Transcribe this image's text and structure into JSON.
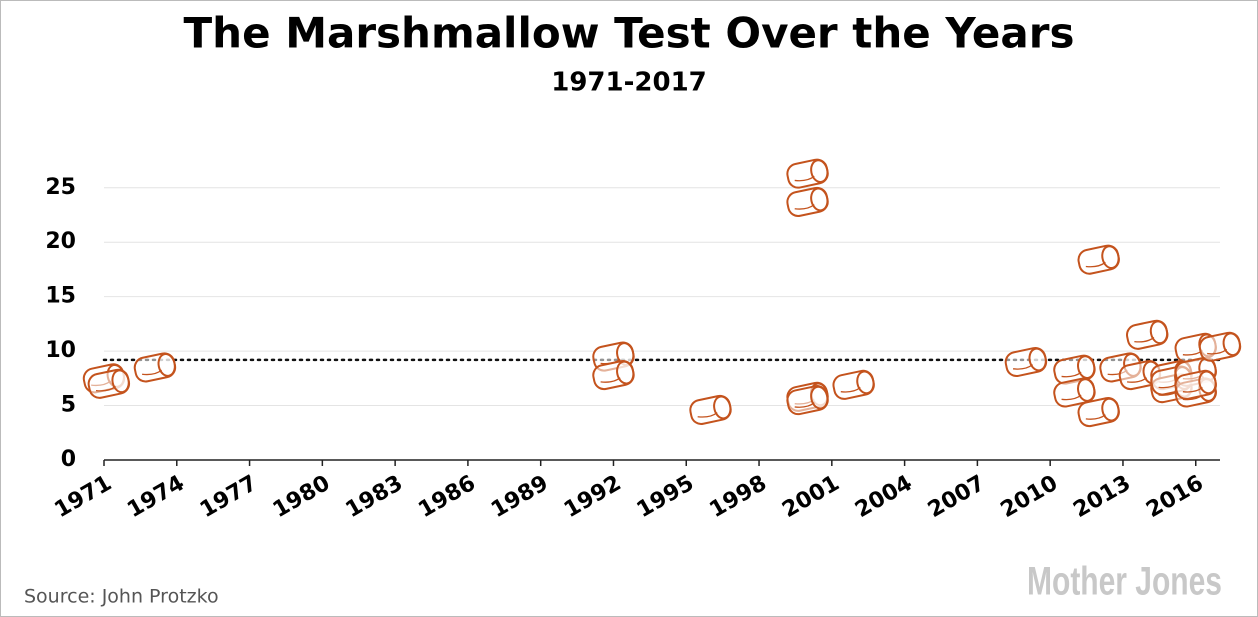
{
  "chart_data": {
    "type": "scatter",
    "title": "The Marshmallow Test Over the Years",
    "subtitle": "1971-2017",
    "series": [
      {
        "color": "#c4531d",
        "x": [
          1971,
          1971.2,
          1973.1,
          1992,
          1992,
          1996,
          2000,
          2000,
          2000,
          2000,
          2001.9,
          2009,
          2011,
          2011,
          2012,
          2012,
          2012.9,
          2014,
          2013.7,
          2015,
          2015,
          2015,
          2016,
          2016,
          2016,
          2016,
          2017
        ],
        "values": [
          7.5,
          7,
          8.5,
          9.5,
          7.8,
          4.6,
          26.3,
          23.7,
          5.8,
          5.5,
          6.9,
          9,
          8.3,
          6.2,
          4.4,
          18.4,
          8.5,
          11.5,
          7.8,
          7.8,
          6.6,
          7.3,
          10.3,
          8.1,
          6.2,
          6.9,
          10.4
        ]
      }
    ],
    "reference_line": 9.2,
    "xlim": [
      1971,
      2017
    ],
    "xticks": [
      1971,
      1974,
      1977,
      1980,
      1983,
      1986,
      1989,
      1992,
      1995,
      1998,
      2001,
      2004,
      2007,
      2010,
      2013,
      2016
    ],
    "ylim": [
      0,
      27
    ],
    "yticks": [
      0,
      5,
      10,
      15,
      20,
      25
    ],
    "grid": true
  },
  "source": "Source: John Protzko",
  "logo": "Mother Jones"
}
